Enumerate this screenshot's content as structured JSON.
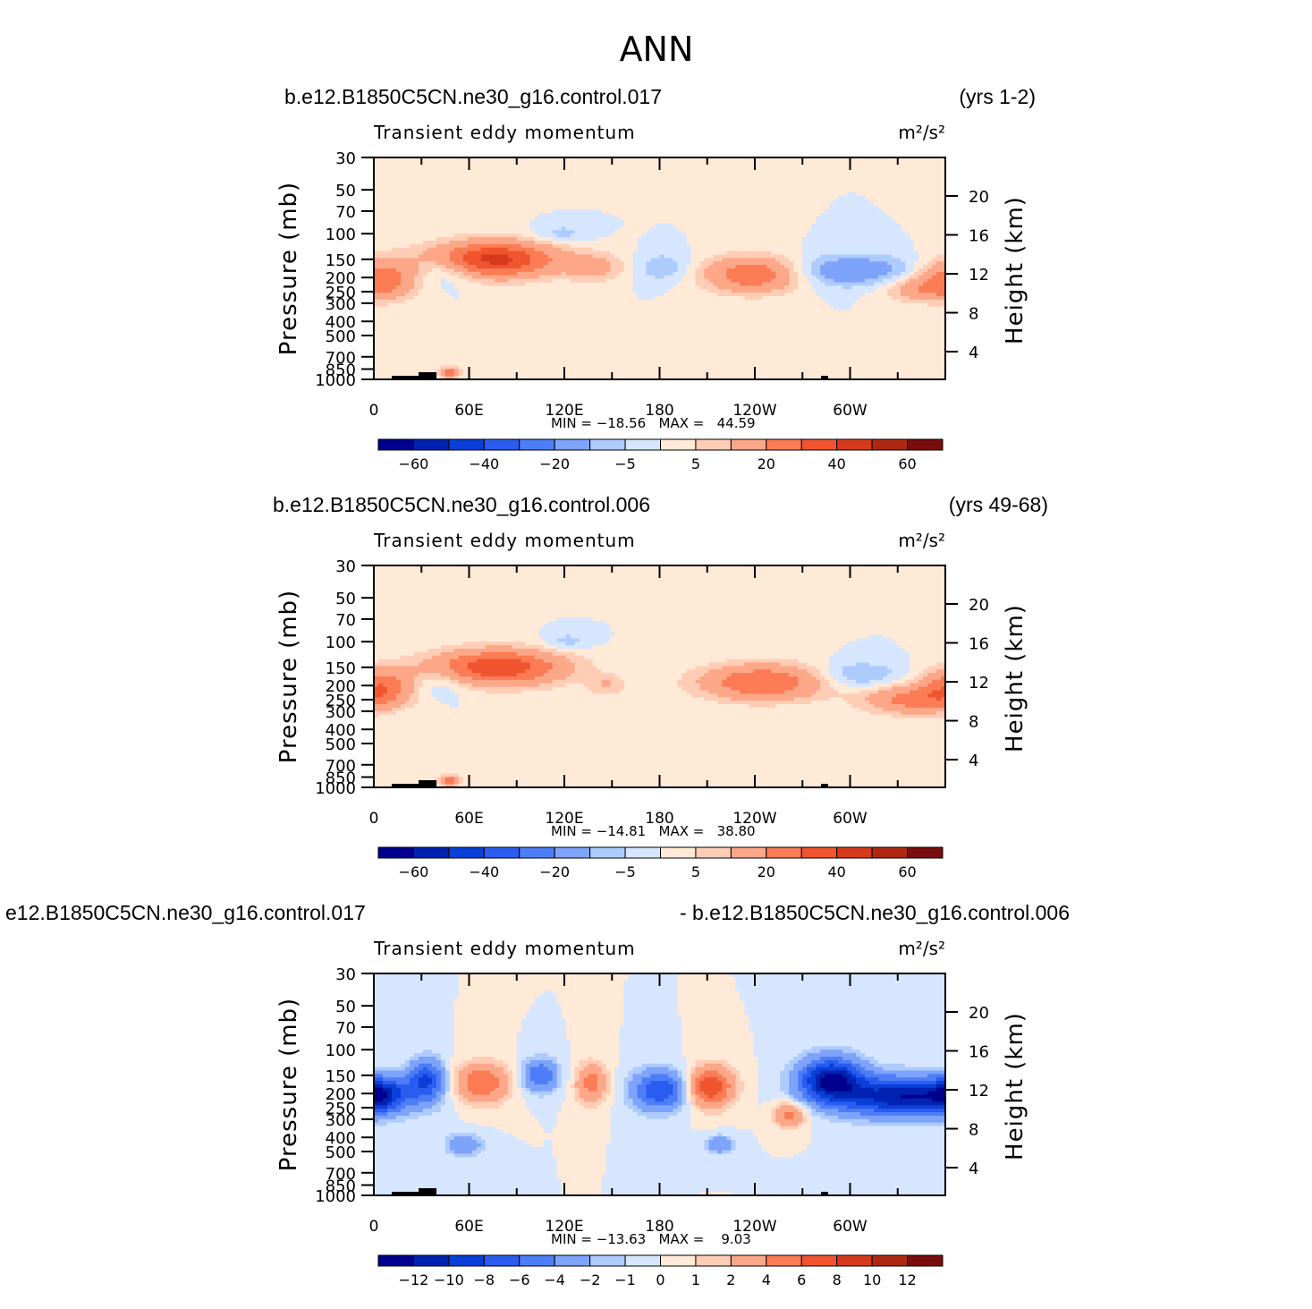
{
  "figure_title": "ANN",
  "colors": {
    "neg": [
      "#00008f",
      "#0022b0",
      "#0a3fd9",
      "#2a5cf0",
      "#4d7df7",
      "#7ea3fa",
      "#aecbfd",
      "#d6e6fe"
    ],
    "pos": [
      "#ffe9d7",
      "#ffcdb6",
      "#fda789",
      "#fb7c55",
      "#f05530",
      "#d63a1c",
      "#b02813",
      "#7a0d0d"
    ],
    "line": "#000000"
  },
  "chart_data": [
    {
      "type": "heatmap",
      "left_title": "b.e12.B1850C5CN.ne30_g16.control.017",
      "right_title": "(yrs 1-2)",
      "field_label": "Transient eddy momentum",
      "units": "m²/s²",
      "xlabel_ticks": [
        "0",
        "60E",
        "120E",
        "180",
        "120W",
        "60W"
      ],
      "yleft_label": "Pressure (mb)",
      "yleft_ticks": [
        "30",
        "50",
        "70",
        "100",
        "150",
        "200",
        "250",
        "300",
        "400",
        "500",
        "700",
        "850",
        "1000"
      ],
      "yright_label": "Height (km)",
      "yright_ticks": [
        "20",
        "16",
        "12",
        "8",
        "4"
      ],
      "min_max": "MIN = −18.56   MAX =   44.59",
      "colorbar_labels": [
        "−60",
        "−40",
        "−20",
        "−5",
        "5",
        "20",
        "40",
        "60"
      ],
      "levels": [
        -70,
        -60,
        -50,
        -40,
        -30,
        -20,
        -10,
        -5,
        0,
        5,
        10,
        20,
        30,
        40,
        50,
        60,
        70
      ],
      "features": [
        {
          "lon": 5,
          "p": 200,
          "value": 25,
          "w": 16,
          "h": 0.22
        },
        {
          "lon": 45,
          "p": 175,
          "value": -12,
          "w": 14,
          "h": 0.18
        },
        {
          "lon": 75,
          "p": 150,
          "value": 44,
          "w": 28,
          "h": 0.2
        },
        {
          "lon": 118,
          "p": 100,
          "value": -8,
          "w": 12,
          "h": 0.1
        },
        {
          "lon": 140,
          "p": 170,
          "value": 12,
          "w": 14,
          "h": 0.16
        },
        {
          "lon": 182,
          "p": 170,
          "value": -10,
          "w": 12,
          "h": 0.16
        },
        {
          "lon": 240,
          "p": 190,
          "value": 30,
          "w": 22,
          "h": 0.2
        },
        {
          "lon": 300,
          "p": 180,
          "value": -18,
          "w": 30,
          "h": 0.18
        },
        {
          "lon": 345,
          "p": 240,
          "value": 15,
          "w": 18,
          "h": 0.14
        },
        {
          "lon": 48,
          "p": 900,
          "value": 25,
          "w": 5,
          "h": 0.06
        }
      ]
    },
    {
      "type": "heatmap",
      "left_title": "b.e12.B1850C5CN.ne30_g16.control.006",
      "right_title": "(yrs 49-68)",
      "field_label": "Transient eddy momentum",
      "units": "m²/s²",
      "xlabel_ticks": [
        "0",
        "60E",
        "120E",
        "180",
        "120W",
        "60W"
      ],
      "yleft_label": "Pressure (mb)",
      "yleft_ticks": [
        "30",
        "50",
        "70",
        "100",
        "150",
        "200",
        "250",
        "300",
        "400",
        "500",
        "700",
        "850",
        "1000"
      ],
      "yright_label": "Height (km)",
      "yright_ticks": [
        "20",
        "16",
        "12",
        "8",
        "4"
      ],
      "min_max": "MIN = −14.81   MAX =   38.80",
      "colorbar_labels": [
        "−60",
        "−40",
        "−20",
        "−5",
        "5",
        "20",
        "40",
        "60"
      ],
      "levels": [
        -70,
        -60,
        -50,
        -40,
        -30,
        -20,
        -10,
        -5,
        0,
        5,
        10,
        20,
        30,
        40,
        50,
        60,
        70
      ],
      "features": [
        {
          "lon": 5,
          "p": 200,
          "value": 25,
          "w": 14,
          "h": 0.2
        },
        {
          "lon": 42,
          "p": 190,
          "value": -8,
          "w": 12,
          "h": 0.16
        },
        {
          "lon": 78,
          "p": 150,
          "value": 38,
          "w": 30,
          "h": 0.2
        },
        {
          "lon": 122,
          "p": 100,
          "value": -8,
          "w": 10,
          "h": 0.1
        },
        {
          "lon": 147,
          "p": 200,
          "value": 10,
          "w": 8,
          "h": 0.12
        },
        {
          "lon": 245,
          "p": 190,
          "value": 30,
          "w": 28,
          "h": 0.2
        },
        {
          "lon": 305,
          "p": 170,
          "value": -12,
          "w": 18,
          "h": 0.15
        },
        {
          "lon": 340,
          "p": 250,
          "value": 24,
          "w": 22,
          "h": 0.16
        },
        {
          "lon": 48,
          "p": 900,
          "value": 25,
          "w": 5,
          "h": 0.06
        }
      ]
    },
    {
      "type": "heatmap",
      "left_title": "e12.B1850C5CN.ne30_g16.control.017",
      "right_title": "- b.e12.B1850C5CN.ne30_g16.control.006",
      "field_label": "Transient eddy momentum",
      "units": "m²/s²",
      "xlabel_ticks": [
        "0",
        "60E",
        "120E",
        "180",
        "120W",
        "60W"
      ],
      "yleft_label": "Pressure (mb)",
      "yleft_ticks": [
        "30",
        "50",
        "70",
        "100",
        "150",
        "200",
        "250",
        "300",
        "400",
        "500",
        "700",
        "850",
        "1000"
      ],
      "yright_label": "Height (km)",
      "yright_ticks": [
        "20",
        "16",
        "12",
        "8",
        "4"
      ],
      "min_max": "MIN = −13.63   MAX =    9.03",
      "colorbar_labels": [
        "−12",
        "−10",
        "−8",
        "−6",
        "−4",
        "−2",
        "−1",
        "0",
        "1",
        "2",
        "4",
        "6",
        "8",
        "10",
        "12"
      ],
      "levels": [
        -14,
        -12,
        -10,
        -8,
        -6,
        -4,
        -2,
        -1,
        0,
        1,
        2,
        4,
        6,
        8,
        10,
        12,
        14
      ],
      "features": [
        {
          "lon": 5,
          "p": 200,
          "value": -6,
          "w": 10,
          "h": 0.18
        },
        {
          "lon": 33,
          "p": 160,
          "value": -8,
          "w": 8,
          "h": 0.22
        },
        {
          "lon": 68,
          "p": 170,
          "value": 6,
          "w": 12,
          "h": 0.22
        },
        {
          "lon": 105,
          "p": 150,
          "value": -6,
          "w": 8,
          "h": 0.18
        },
        {
          "lon": 137,
          "p": 170,
          "value": 5,
          "w": 7,
          "h": 0.22
        },
        {
          "lon": 180,
          "p": 190,
          "value": -8,
          "w": 12,
          "h": 0.22
        },
        {
          "lon": 212,
          "p": 180,
          "value": 8,
          "w": 10,
          "h": 0.22
        },
        {
          "lon": 262,
          "p": 280,
          "value": 5,
          "w": 7,
          "h": 0.14
        },
        {
          "lon": 288,
          "p": 160,
          "value": -12,
          "w": 14,
          "h": 0.24
        },
        {
          "lon": 335,
          "p": 210,
          "value": -12,
          "w": 30,
          "h": 0.22
        },
        {
          "lon": 57,
          "p": 450,
          "value": -4,
          "w": 8,
          "h": 0.12
        },
        {
          "lon": 218,
          "p": 450,
          "value": -4,
          "w": 6,
          "h": 0.1
        }
      ]
    }
  ]
}
